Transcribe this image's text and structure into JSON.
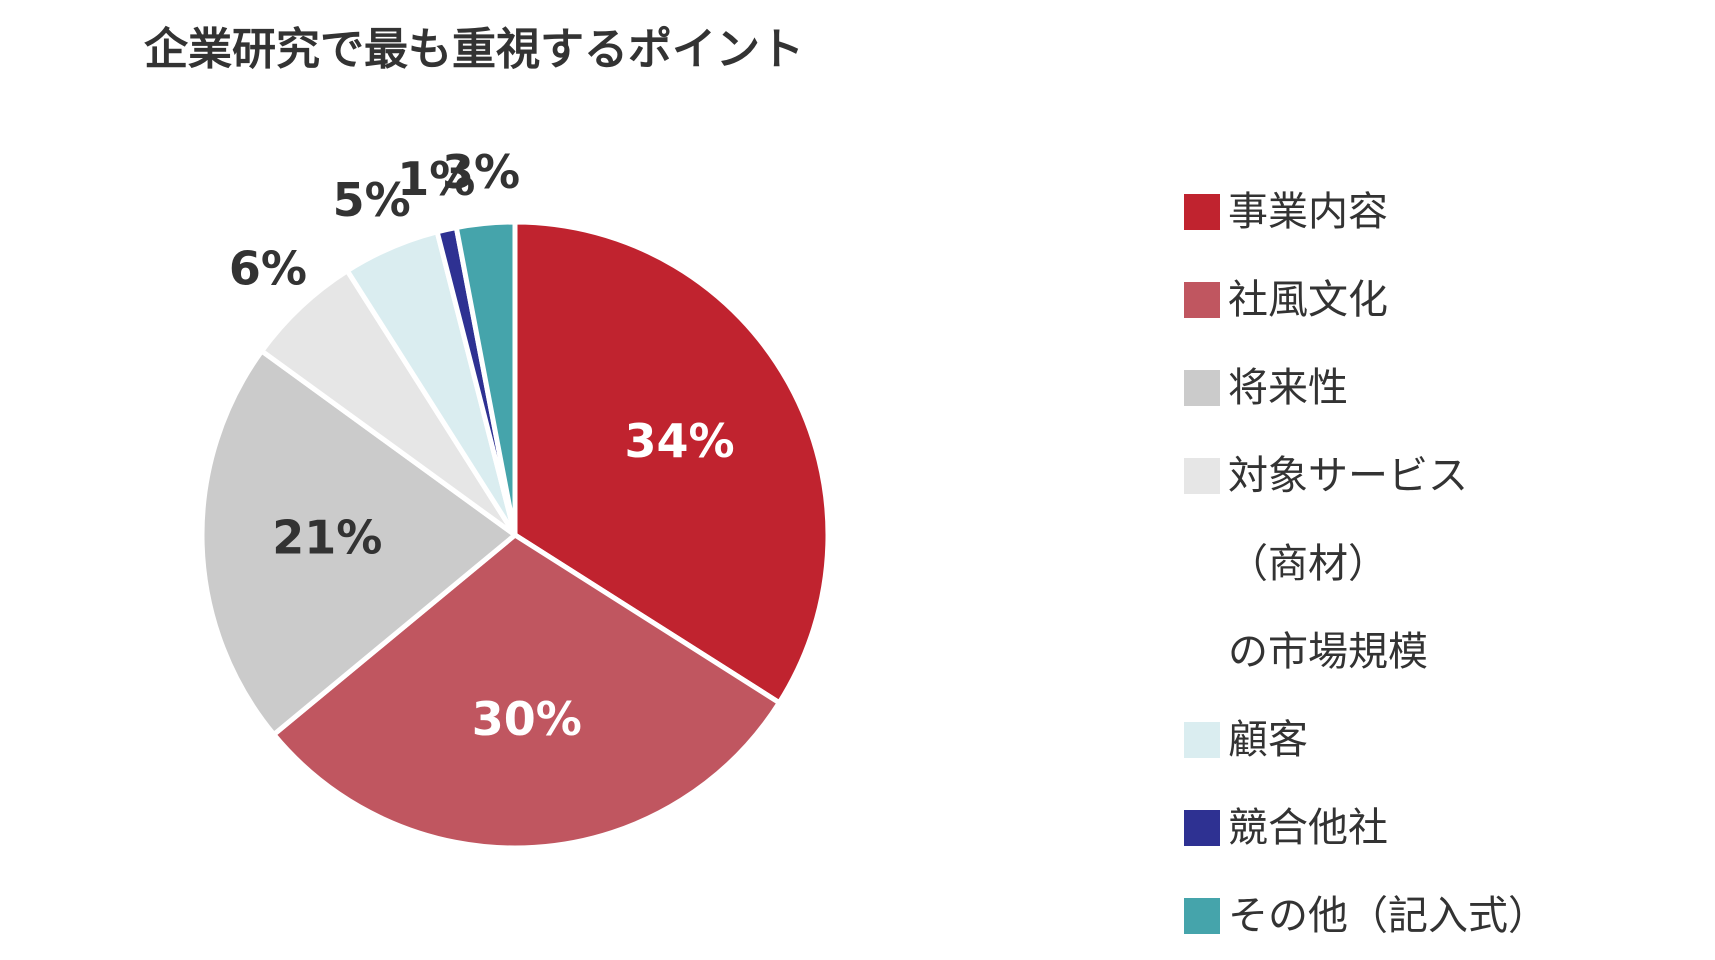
{
  "chart_data": {
    "type": "pie",
    "title": "企業研究で最も重視するポイント",
    "categories": [
      "事業内容",
      "社風文化",
      "将来性",
      "対象サービス（商材）の市場規模",
      "顧客",
      "競合他社",
      "その他（記入式）"
    ],
    "values": [
      34,
      30,
      21,
      6,
      5,
      1,
      3
    ],
    "value_labels": [
      "34%",
      "30%",
      "21%",
      "6%",
      "5%",
      "1%",
      "3%"
    ],
    "colors": [
      "#c0232f",
      "#c05660",
      "#cbcbcb",
      "#e6e6e6",
      "#daedf0",
      "#2e3192",
      "#45a4ab"
    ],
    "legend": "right"
  }
}
